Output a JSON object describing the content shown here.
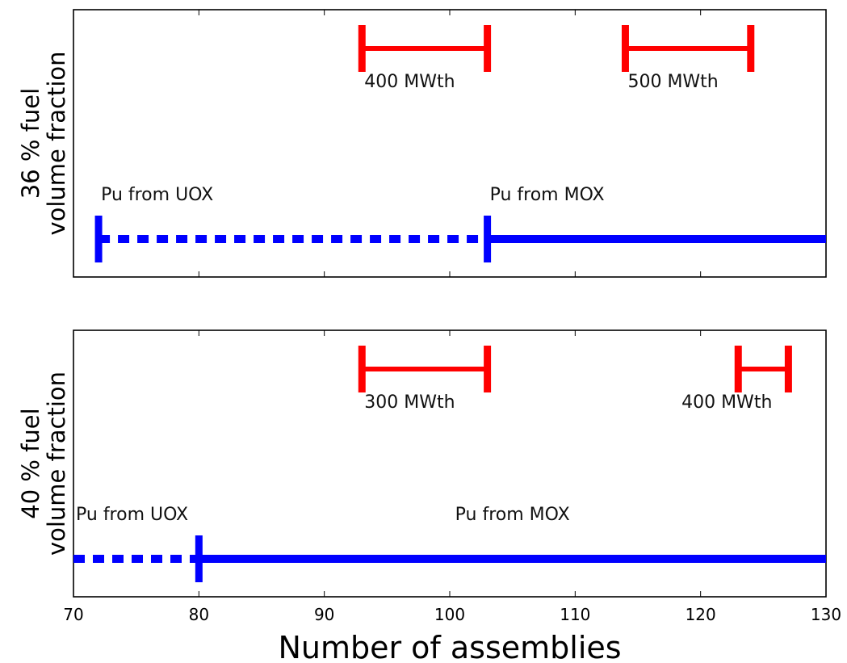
{
  "chart_data": {
    "type": "range",
    "xlabel": "Number of assemblies",
    "xlim": [
      70,
      130
    ],
    "xticks": [
      "70",
      "80",
      "90",
      "100",
      "110",
      "120",
      "130"
    ],
    "colors": {
      "power_range": "#ff0000",
      "pu_range": "#0000ff"
    },
    "panels": [
      {
        "ylabel": [
          "36 % fuel",
          "volume fraction"
        ],
        "power_ranges": [
          {
            "label": "400 MWth",
            "start": 93,
            "end": 103
          },
          {
            "label": "500 MWth",
            "start": 114,
            "end": 124
          }
        ],
        "pu_source": {
          "uox_label": "Pu from UOX",
          "mox_label": "Pu from MOX",
          "uox_start": 72,
          "mox_start": 103,
          "end": 130,
          "uox_line": "dashed",
          "mox_line": "solid"
        }
      },
      {
        "ylabel": [
          "40 % fuel",
          "volume fraction"
        ],
        "power_ranges": [
          {
            "label": "300 MWth",
            "start": 93,
            "end": 103
          },
          {
            "label": "400 MWth",
            "start": 123,
            "end": 127
          }
        ],
        "pu_source": {
          "uox_label": "Pu from UOX",
          "mox_label": "Pu from MOX",
          "uox_start": 70,
          "mox_start": 80,
          "end": 130,
          "uox_line": "dashed",
          "mox_line": "solid"
        }
      }
    ]
  }
}
